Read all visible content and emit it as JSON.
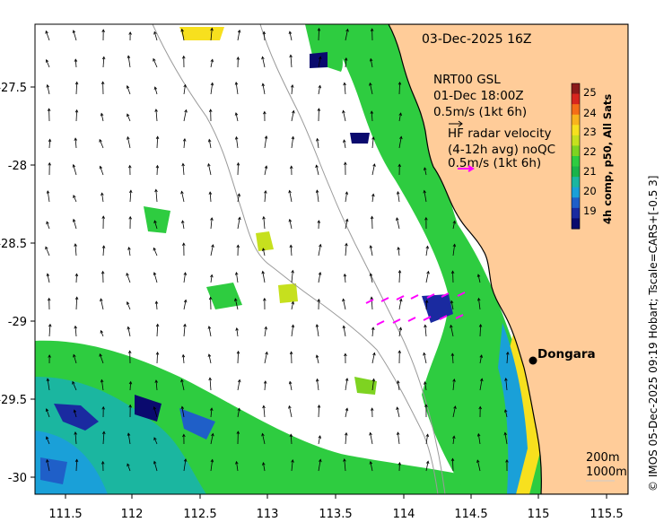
{
  "header": {
    "datetime": "03-Dec-2025 16Z"
  },
  "legend": {
    "model_title": "NRT00 GSL",
    "model_time": "01-Dec 18:00Z",
    "model_scale": "0.5m/s (1kt 6h)",
    "radar_title": "HF radar velocity",
    "radar_desc": "(4-12h avg) noQC",
    "radar_scale": "0.5m/s (1kt 6h)",
    "radar_arrow_color": "#ff00ff"
  },
  "colorbar": {
    "label": "4h comp, p50, All Sats",
    "ticks": [
      "25",
      "24",
      "23",
      "22",
      "21",
      "20",
      "19"
    ],
    "colors": [
      "#8b1a1a",
      "#d7261e",
      "#f46d18",
      "#f8b31d",
      "#f7e01e",
      "#c6e01e",
      "#7ed321",
      "#2ecc40",
      "#19b34a",
      "#1bb6a0",
      "#1aa0d8",
      "#1f5fc8",
      "#1a2aa0",
      "#0a0a6e"
    ]
  },
  "side_label": "© IMOS 05-Dec-2025 09:19 Hobart; Tscale=CARS+[-0.5 3]",
  "place": {
    "name": "Dongara"
  },
  "isobaths": {
    "label_200": "200m",
    "label_1000": "1000m"
  },
  "axes": {
    "x_ticks": [
      "111.5",
      "112",
      "112.5",
      "113",
      "113.5",
      "114",
      "114.5",
      "115",
      "115.5"
    ],
    "y_ticks": [
      "-27.5",
      "-28",
      "-28.5",
      "-29",
      "-29.5",
      "-30"
    ]
  },
  "colors": {
    "land": "#ffcc99",
    "coast": "#000000",
    "isobath": "#9a9a9a"
  }
}
